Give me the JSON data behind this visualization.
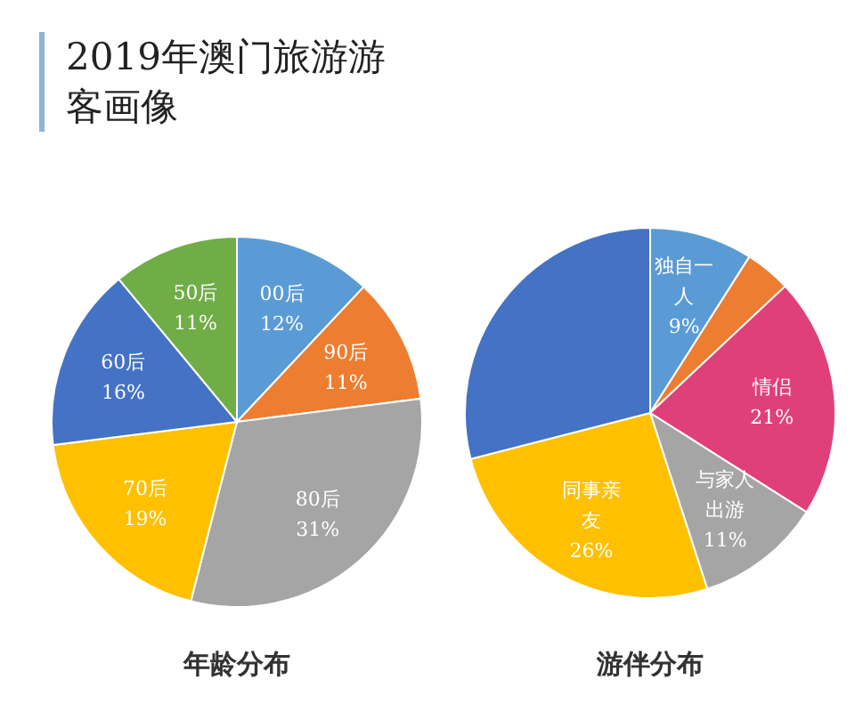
{
  "chart_data": [
    {
      "type": "pie",
      "title": "2019年澳门旅游游客画像",
      "xlabel": "年龄分布",
      "categories": [
        "00后",
        "90后",
        "80后",
        "70后",
        "60后",
        "50后"
      ],
      "values": [
        12,
        11,
        31,
        19,
        16,
        11
      ],
      "colors": [
        "#5b9bd5",
        "#ed7d31",
        "#a5a5a5",
        "#ffc000",
        "#4472c4",
        "#70ad47"
      ],
      "value_labels": [
        "12%",
        "11%",
        "31%",
        "19%",
        "16%",
        "11%"
      ]
    },
    {
      "type": "pie",
      "xlabel": "游伴分布",
      "categories": [
        "独自一人",
        null,
        "情侣",
        "与家人出游",
        "同事亲友",
        null
      ],
      "values": [
        9,
        4,
        21,
        11,
        26,
        29
      ],
      "colors": [
        "#5b9bd5",
        "#ed7d31",
        "#e0407a",
        "#a5a5a5",
        "#ffc000",
        "#4472c4"
      ],
      "value_labels": [
        "9%",
        null,
        "21%",
        "11%",
        "26%",
        null
      ]
    }
  ]
}
